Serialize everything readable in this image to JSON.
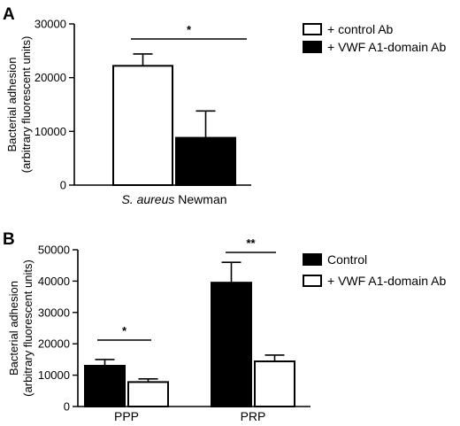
{
  "chart_data": [
    {
      "type": "bar",
      "panel": "A",
      "ylabel_line1": "Bacterial adhesion",
      "ylabel_line2": "(arbitrary fluorescent units)",
      "xlabel": "",
      "ylim": [
        0,
        30000
      ],
      "yticks": [
        0,
        10000,
        20000,
        30000
      ],
      "categories": [
        {
          "italic": "S. aureus",
          "rest": " Newman"
        }
      ],
      "series": [
        {
          "name": "+ control Ab",
          "fill": "#ffffff",
          "values": [
            22200
          ],
          "errors": [
            2200
          ]
        },
        {
          "name": "+ VWF A1-domain Ab",
          "fill": "#000000",
          "values": [
            8800
          ],
          "errors": [
            5000
          ]
        }
      ],
      "significance": [
        {
          "label": "*",
          "category": 0,
          "between": [
            0,
            1
          ]
        }
      ],
      "legend": "top-right",
      "grid": false
    },
    {
      "type": "bar",
      "panel": "B",
      "ylabel_line1": "Bacterial adhesion",
      "ylabel_line2": "(arbitrary fluorescent units)",
      "xlabel": "",
      "ylim": [
        0,
        50000
      ],
      "yticks": [
        0,
        10000,
        20000,
        30000,
        40000,
        50000
      ],
      "categories": [
        {
          "italic": "",
          "rest": "PPP"
        },
        {
          "italic": "",
          "rest": "PRP"
        }
      ],
      "series": [
        {
          "name": "Control",
          "fill": "#000000",
          "values": [
            13000,
            39500
          ],
          "errors": [
            2000,
            6500
          ]
        },
        {
          "name": "+ VWF A1-domain Ab",
          "fill": "#ffffff",
          "values": [
            7800,
            14400
          ],
          "errors": [
            1000,
            2000
          ]
        }
      ],
      "significance": [
        {
          "label": "*",
          "category": 0,
          "between": [
            0,
            1
          ]
        },
        {
          "label": "**",
          "category": 1,
          "between": [
            0,
            1
          ]
        }
      ],
      "legend": "top-right",
      "grid": false
    }
  ]
}
